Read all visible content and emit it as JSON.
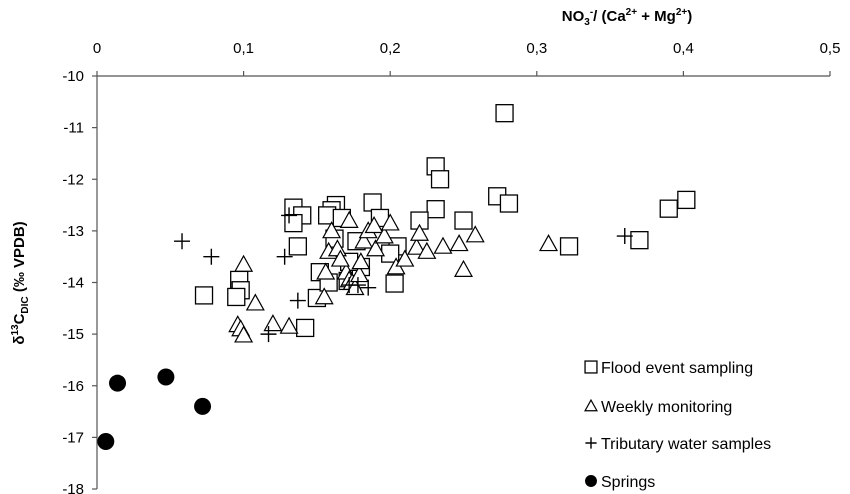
{
  "chart_data": {
    "type": "scatter",
    "title": "",
    "xlabel": "NO3-/ (Ca2+ + Mg2+)",
    "xlabel_parts": {
      "main1": "NO",
      "sub1": "3",
      "sup1": "-",
      "main2": "/ (Ca",
      "sup2": "2+",
      "main3": " + Mg",
      "sup3": "2+",
      "main4": ")"
    },
    "ylabel": "δ13CDIC (‰ VPDB)",
    "ylabel_parts": {
      "main1": "δ",
      "sup1": "13",
      "main2": "C",
      "sub1": "DIC",
      "main3": " (‰ VPDB)"
    },
    "x_axis_position": "top",
    "xlim": [
      0,
      0.5
    ],
    "ylim": [
      -18,
      -10
    ],
    "x_ticks": [
      0,
      0.1,
      0.2,
      0.3,
      0.4,
      0.5
    ],
    "x_tick_labels": [
      "0",
      "0,1",
      "0,2",
      "0,3",
      "0,4",
      "0,5"
    ],
    "y_ticks": [
      -10,
      -11,
      -12,
      -13,
      -14,
      -15,
      -16,
      -17,
      -18
    ],
    "y_tick_labels": [
      "-10",
      "-11",
      "-12",
      "-13",
      "-14",
      "-15",
      "-16",
      "-17",
      "-18"
    ],
    "grid": false,
    "legend_position": "bottom-right",
    "series": [
      {
        "name": "Flood event sampling",
        "marker": "square",
        "color": "#000000",
        "points": [
          [
            0.278,
            -10.72
          ],
          [
            0.231,
            -11.75
          ],
          [
            0.234,
            -12.0
          ],
          [
            0.273,
            -12.33
          ],
          [
            0.281,
            -12.47
          ],
          [
            0.39,
            -12.57
          ],
          [
            0.402,
            -12.4
          ],
          [
            0.231,
            -12.58
          ],
          [
            0.25,
            -12.8
          ],
          [
            0.22,
            -12.8
          ],
          [
            0.163,
            -12.5
          ],
          [
            0.188,
            -12.45
          ],
          [
            0.134,
            -12.55
          ],
          [
            0.14,
            -12.7
          ],
          [
            0.16,
            -12.6
          ],
          [
            0.157,
            -12.7
          ],
          [
            0.167,
            -12.75
          ],
          [
            0.193,
            -12.75
          ],
          [
            0.134,
            -12.85
          ],
          [
            0.137,
            -13.3
          ],
          [
            0.162,
            -13.15
          ],
          [
            0.205,
            -13.3
          ],
          [
            0.37,
            -13.18
          ],
          [
            0.322,
            -13.3
          ],
          [
            0.2,
            -13.44
          ],
          [
            0.177,
            -13.2
          ],
          [
            0.152,
            -13.8
          ],
          [
            0.097,
            -13.95
          ],
          [
            0.098,
            -14.15
          ],
          [
            0.095,
            -14.28
          ],
          [
            0.073,
            -14.25
          ],
          [
            0.15,
            -14.3
          ],
          [
            0.142,
            -14.88
          ],
          [
            0.203,
            -14.02
          ],
          [
            0.158,
            -14.0
          ],
          [
            0.171,
            -13.97
          ],
          [
            0.18,
            -13.7
          ],
          [
            0.172,
            -13.6
          ]
        ]
      },
      {
        "name": "Weekly monitoring",
        "marker": "triangle",
        "color": "#000000",
        "points": [
          [
            0.1,
            -13.65
          ],
          [
            0.108,
            -14.4
          ],
          [
            0.096,
            -14.82
          ],
          [
            0.098,
            -14.9
          ],
          [
            0.1,
            -15.02
          ],
          [
            0.12,
            -14.8
          ],
          [
            0.131,
            -14.85
          ],
          [
            0.155,
            -14.28
          ],
          [
            0.156,
            -13.8
          ],
          [
            0.158,
            -13.4
          ],
          [
            0.16,
            -13.0
          ],
          [
            0.164,
            -13.35
          ],
          [
            0.17,
            -13.8
          ],
          [
            0.172,
            -13.95
          ],
          [
            0.174,
            -14.0
          ],
          [
            0.176,
            -14.1
          ],
          [
            0.179,
            -13.85
          ],
          [
            0.18,
            -13.6
          ],
          [
            0.182,
            -13.2
          ],
          [
            0.185,
            -13.0
          ],
          [
            0.189,
            -12.9
          ],
          [
            0.19,
            -13.35
          ],
          [
            0.196,
            -13.1
          ],
          [
            0.2,
            -12.85
          ],
          [
            0.204,
            -13.7
          ],
          [
            0.21,
            -13.55
          ],
          [
            0.218,
            -13.32
          ],
          [
            0.22,
            -13.05
          ],
          [
            0.236,
            -13.3
          ],
          [
            0.247,
            -13.25
          ],
          [
            0.25,
            -13.75
          ],
          [
            0.258,
            -13.08
          ],
          [
            0.172,
            -12.8
          ],
          [
            0.166,
            -13.55
          ],
          [
            0.308,
            -13.25
          ],
          [
            0.225,
            -13.4
          ]
        ]
      },
      {
        "name": "Tributary water samples",
        "marker": "plus",
        "color": "#000000",
        "points": [
          [
            0.058,
            -13.2
          ],
          [
            0.078,
            -13.5
          ],
          [
            0.131,
            -12.7
          ],
          [
            0.128,
            -13.5
          ],
          [
            0.137,
            -14.35
          ],
          [
            0.117,
            -15.0
          ],
          [
            0.172,
            -14.05
          ],
          [
            0.178,
            -14.05
          ],
          [
            0.185,
            -14.1
          ],
          [
            0.36,
            -13.1
          ]
        ]
      },
      {
        "name": "Springs",
        "marker": "circle",
        "color": "#000000",
        "points": [
          [
            0.006,
            -17.08
          ],
          [
            0.014,
            -15.95
          ],
          [
            0.047,
            -15.83
          ],
          [
            0.072,
            -16.4
          ]
        ]
      }
    ]
  }
}
